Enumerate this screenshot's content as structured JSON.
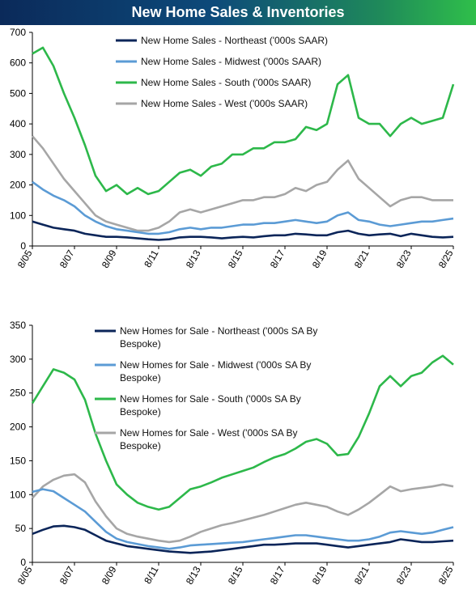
{
  "title": "New Home Sales & Inventories",
  "chart_data": [
    {
      "type": "line",
      "ylim": [
        0,
        700
      ],
      "yticks": [
        0,
        100,
        200,
        300,
        400,
        500,
        600,
        700
      ],
      "xticks": [
        "8/05",
        "8/07",
        "8/09",
        "8/11",
        "8/13",
        "8/15",
        "8/17",
        "8/19",
        "8/21",
        "8/23",
        "8/25"
      ],
      "grid": false,
      "legend_position": "top-left",
      "x": [
        "8/05",
        "2/06",
        "8/06",
        "2/07",
        "8/07",
        "2/08",
        "8/08",
        "2/09",
        "8/09",
        "2/10",
        "8/10",
        "2/11",
        "8/11",
        "2/12",
        "8/12",
        "2/13",
        "8/13",
        "2/14",
        "8/14",
        "2/15",
        "8/15",
        "2/16",
        "8/16",
        "2/17",
        "8/17",
        "2/18",
        "8/18",
        "2/19",
        "8/19",
        "2/20",
        "8/20",
        "2/21",
        "8/21",
        "2/22",
        "8/22",
        "2/23",
        "8/23",
        "2/24",
        "8/24",
        "2/25",
        "8/25"
      ],
      "series": [
        {
          "name": "New Home Sales - Northeast ('000s SAAR)",
          "color": "#0b2559",
          "values": [
            80,
            70,
            60,
            55,
            50,
            40,
            35,
            30,
            30,
            28,
            25,
            22,
            20,
            22,
            28,
            30,
            30,
            28,
            25,
            28,
            30,
            28,
            32,
            35,
            35,
            40,
            38,
            35,
            35,
            45,
            50,
            40,
            35,
            38,
            40,
            32,
            40,
            35,
            30,
            28,
            30
          ]
        },
        {
          "name": "New Home Sales - Midwest ('000s SAAR)",
          "color": "#5b9bd5",
          "values": [
            210,
            185,
            165,
            150,
            130,
            100,
            80,
            65,
            55,
            50,
            45,
            40,
            40,
            45,
            55,
            60,
            55,
            60,
            60,
            65,
            70,
            70,
            75,
            75,
            80,
            85,
            80,
            75,
            80,
            100,
            110,
            85,
            80,
            70,
            65,
            70,
            75,
            80,
            80,
            85,
            90
          ]
        },
        {
          "name": "New Home Sales - South ('000s SAAR)",
          "color": "#2db84a",
          "values": [
            630,
            650,
            590,
            500,
            420,
            330,
            230,
            180,
            200,
            170,
            190,
            170,
            180,
            210,
            240,
            250,
            230,
            260,
            270,
            300,
            300,
            320,
            320,
            340,
            340,
            350,
            390,
            380,
            400,
            530,
            560,
            420,
            400,
            400,
            360,
            400,
            420,
            400,
            410,
            420,
            530
          ]
        },
        {
          "name": "New Home Sales - West ('000s SAAR)",
          "color": "#a6a6a6",
          "values": [
            360,
            320,
            270,
            220,
            180,
            140,
            100,
            80,
            70,
            60,
            50,
            50,
            60,
            80,
            110,
            120,
            110,
            120,
            130,
            140,
            150,
            150,
            160,
            160,
            170,
            190,
            180,
            200,
            210,
            250,
            280,
            220,
            190,
            160,
            130,
            150,
            160,
            160,
            150,
            150,
            150
          ]
        }
      ]
    },
    {
      "type": "line",
      "ylim": [
        0,
        350
      ],
      "yticks": [
        0,
        50,
        100,
        150,
        200,
        250,
        300,
        350
      ],
      "xticks": [
        "8/05",
        "8/07",
        "8/09",
        "8/11",
        "8/13",
        "8/15",
        "8/17",
        "8/19",
        "8/21",
        "8/23",
        "8/25"
      ],
      "grid": false,
      "legend_position": "top-left",
      "x": [
        "8/05",
        "2/06",
        "8/06",
        "2/07",
        "8/07",
        "2/08",
        "8/08",
        "2/09",
        "8/09",
        "2/10",
        "8/10",
        "2/11",
        "8/11",
        "2/12",
        "8/12",
        "2/13",
        "8/13",
        "2/14",
        "8/14",
        "2/15",
        "8/15",
        "2/16",
        "8/16",
        "2/17",
        "8/17",
        "2/18",
        "8/18",
        "2/19",
        "8/19",
        "2/20",
        "8/20",
        "2/21",
        "8/21",
        "2/22",
        "8/22",
        "2/23",
        "8/23",
        "2/24",
        "8/24",
        "2/25",
        "8/25"
      ],
      "series": [
        {
          "name": "New Homes for Sale - Northeast ('000s SA By Bespoke)",
          "color": "#0b2559",
          "values": [
            42,
            48,
            53,
            54,
            52,
            48,
            40,
            32,
            28,
            24,
            22,
            20,
            18,
            16,
            15,
            14,
            15,
            16,
            18,
            20,
            22,
            24,
            26,
            26,
            27,
            28,
            28,
            28,
            26,
            24,
            22,
            24,
            26,
            28,
            30,
            34,
            32,
            30,
            30,
            31,
            32
          ]
        },
        {
          "name": "New Homes for Sale - Midwest ('000s SA By Bespoke)",
          "color": "#5b9bd5",
          "values": [
            104,
            108,
            105,
            95,
            85,
            75,
            60,
            45,
            35,
            30,
            27,
            24,
            22,
            20,
            22,
            25,
            26,
            27,
            28,
            29,
            30,
            32,
            34,
            36,
            38,
            40,
            40,
            38,
            36,
            34,
            32,
            32,
            34,
            38,
            44,
            46,
            44,
            42,
            44,
            48,
            52
          ]
        },
        {
          "name": "New Homes for Sale - South ('000s SA By Bespoke)",
          "color": "#2db84a",
          "values": [
            235,
            260,
            285,
            280,
            270,
            240,
            190,
            150,
            115,
            100,
            88,
            82,
            78,
            82,
            95,
            108,
            112,
            118,
            125,
            130,
            135,
            140,
            148,
            155,
            160,
            168,
            178,
            182,
            175,
            158,
            160,
            185,
            220,
            260,
            275,
            260,
            275,
            280,
            295,
            305,
            292
          ]
        },
        {
          "name": "New Homes for Sale - West ('000s SA By Bespoke)",
          "color": "#a6a6a6",
          "values": [
            95,
            112,
            122,
            128,
            130,
            118,
            90,
            68,
            50,
            42,
            38,
            35,
            32,
            30,
            32,
            38,
            45,
            50,
            55,
            58,
            62,
            66,
            70,
            75,
            80,
            85,
            88,
            85,
            82,
            75,
            70,
            78,
            88,
            100,
            112,
            105,
            108,
            110,
            112,
            115,
            112
          ]
        }
      ]
    }
  ]
}
